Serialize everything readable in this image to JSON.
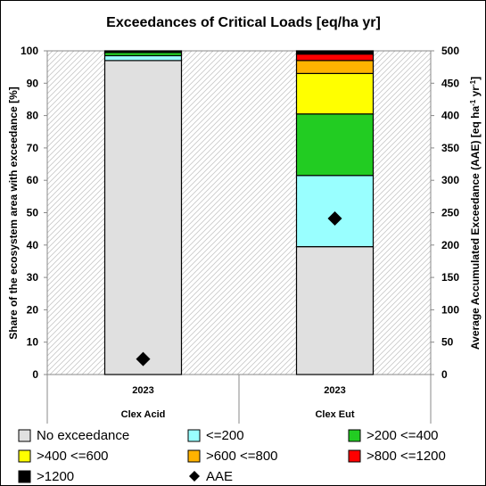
{
  "chart_data": {
    "type": "bar",
    "stacked": true,
    "title": "Exceedances of Critical Loads [eq/ha yr]",
    "ylabel_left": "Share of the ecosystem area with exceedance [%]",
    "ylabel_right_main": "Average Accumulated Exceedance (AAE) [eq ha",
    "ylabel_right_sup1": "-1",
    "ylabel_right_mid": " yr",
    "ylabel_right_sup2": "-1",
    "ylabel_right_end": "]",
    "ylim_left": [
      0,
      100
    ],
    "ylim_right": [
      0,
      500
    ],
    "yticks_left": [
      0,
      10,
      20,
      30,
      40,
      50,
      60,
      70,
      80,
      90,
      100
    ],
    "yticks_right": [
      0,
      50,
      100,
      150,
      200,
      250,
      300,
      350,
      400,
      450,
      500
    ],
    "grid": false,
    "legend_position": "bottom",
    "categories": [
      {
        "year": "2023",
        "label": "Clex Acid"
      },
      {
        "year": "2023",
        "label": "Clex Eut"
      }
    ],
    "series": [
      {
        "name": "No exceedance",
        "color": "#e0e0e0",
        "values": [
          97,
          39.5
        ]
      },
      {
        "name": "<=200",
        "color": "#99ffff",
        "values": [
          1.5,
          22
        ]
      },
      {
        "name": ">200 <=400",
        "color": "#22cc22",
        "values": [
          1,
          19
        ]
      },
      {
        "name": ">400 <=600",
        "color": "#ffff00",
        "values": [
          0,
          12.5
        ]
      },
      {
        "name": ">600 <=800",
        "color": "#ffb300",
        "values": [
          0,
          4
        ]
      },
      {
        "name": ">800 <=1200",
        "color": "#ff0000",
        "values": [
          0,
          2
        ]
      },
      {
        "name": ">1200",
        "color": "#000000",
        "values": [
          0.5,
          1
        ]
      }
    ],
    "aae": {
      "name": "AAE",
      "values": [
        24,
        241
      ]
    }
  }
}
